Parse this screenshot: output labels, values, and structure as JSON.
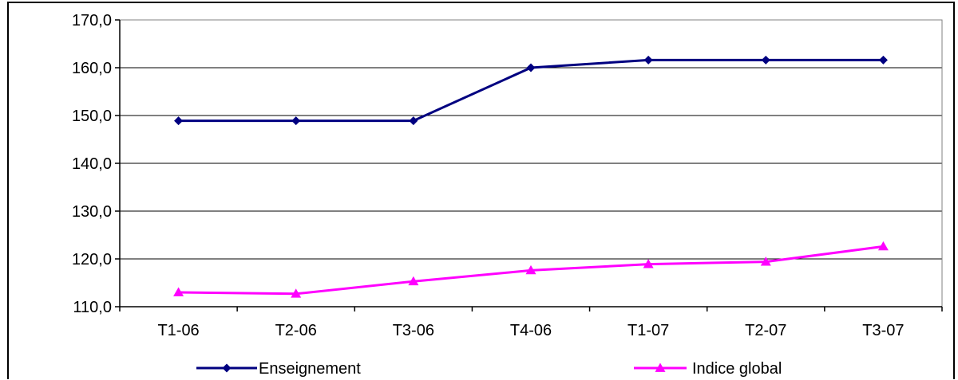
{
  "chart_data": {
    "type": "line",
    "title": "",
    "xlabel": "",
    "ylabel": "",
    "categories": [
      "T1-06",
      "T2-06",
      "T3-06",
      "T4-06",
      "T1-07",
      "T2-07",
      "T3-07"
    ],
    "ylim": [
      110,
      170
    ],
    "yticks": [
      110,
      120,
      130,
      140,
      150,
      160,
      170
    ],
    "ytick_labels": [
      "110,0",
      "120,0",
      "130,0",
      "140,0",
      "150,0",
      "160,0",
      "170,0"
    ],
    "grid": "horizontal",
    "legend_position": "bottom",
    "series": [
      {
        "name": "Enseignement",
        "color": "#000080",
        "marker": "diamond",
        "values": [
          148.9,
          148.9,
          148.9,
          160.0,
          161.6,
          161.6,
          161.6
        ]
      },
      {
        "name": "Indice global",
        "color": "#FF00FF",
        "marker": "triangle",
        "values": [
          113.0,
          112.7,
          115.3,
          117.6,
          118.9,
          119.4,
          122.6
        ]
      }
    ]
  }
}
